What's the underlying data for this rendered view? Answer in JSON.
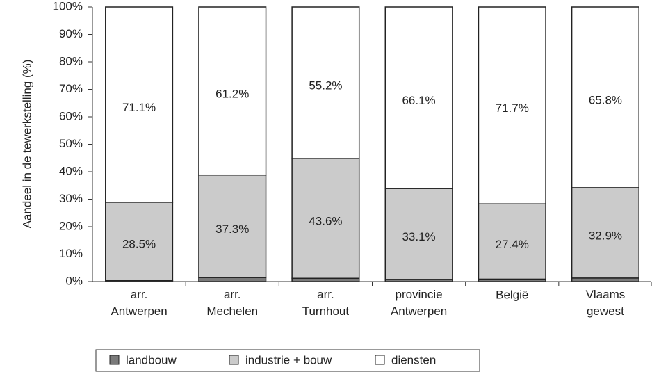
{
  "chart_data": {
    "type": "stacked_bar",
    "y_axis_label": "Aandeel in de tewerkstelling (%)",
    "categories": [
      "arr. Antwerpen",
      "arr. Mechelen",
      "arr. Turnhout",
      "provincie Antwerpen",
      "België",
      "Vlaams gewest"
    ],
    "series": [
      {
        "name": "landbouw",
        "color": "#7a7a7a",
        "values": [
          0.4,
          1.5,
          1.2,
          0.8,
          0.9,
          1.3
        ]
      },
      {
        "name": "industrie + bouw",
        "color": "#cbcbcb",
        "values": [
          28.5,
          37.3,
          43.6,
          33.1,
          27.4,
          32.9
        ],
        "value_labels": [
          "28.5%",
          "37.3%",
          "43.6%",
          "33.1%",
          "27.4%",
          "32.9%"
        ]
      },
      {
        "name": "diensten",
        "color": "#ffffff",
        "values": [
          71.1,
          61.2,
          55.2,
          66.1,
          71.7,
          65.8
        ],
        "value_labels": [
          "71.1%",
          "61.2%",
          "55.2%",
          "66.1%",
          "71.7%",
          "65.8%"
        ]
      }
    ],
    "ylim": [
      0,
      100
    ],
    "yticks": [
      {
        "value": 0,
        "label": "0%"
      },
      {
        "value": 10,
        "label": "10%"
      },
      {
        "value": 20,
        "label": "20%"
      },
      {
        "value": 30,
        "label": "30%"
      },
      {
        "value": 40,
        "label": "40%"
      },
      {
        "value": 50,
        "label": "50%"
      },
      {
        "value": 60,
        "label": "60%"
      },
      {
        "value": 70,
        "label": "70%"
      },
      {
        "value": 80,
        "label": "80%"
      },
      {
        "value": 90,
        "label": "90%"
      },
      {
        "value": 100,
        "label": "100%"
      }
    ],
    "legend": "bottom"
  }
}
